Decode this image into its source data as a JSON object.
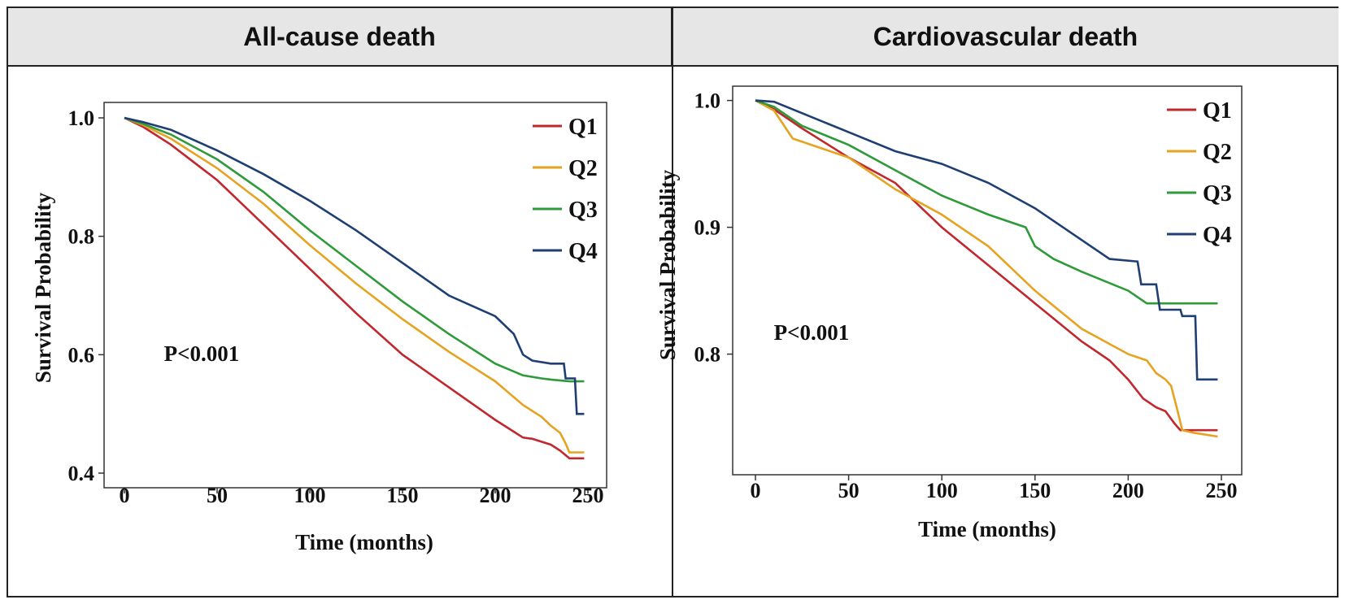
{
  "colors": {
    "Q1": "#c0282d",
    "Q2": "#e6a321",
    "Q3": "#2e9a3a",
    "Q4": "#1f3f73"
  },
  "panels": [
    {
      "title": "All-cause death",
      "pvalue": "P<0.001"
    },
    {
      "title": "Cardiovascular death",
      "pvalue": "P<0.001"
    }
  ],
  "chart_data": [
    {
      "type": "line",
      "title": "All-cause death",
      "xlabel": "Time (months)",
      "ylabel": "Survival Probability",
      "xlim": [
        0,
        250
      ],
      "ylim": [
        0.4,
        1.0
      ],
      "xticks": [
        "0",
        "50",
        "100",
        "150",
        "200",
        "250"
      ],
      "yticks": [
        "0.4",
        "0.6",
        "0.8",
        "1.0"
      ],
      "legend": "top-right",
      "annotation": "P<0.001",
      "series": [
        {
          "name": "Q1",
          "x": [
            0,
            10,
            25,
            50,
            75,
            100,
            125,
            150,
            175,
            200,
            215,
            220,
            230,
            235,
            240,
            248
          ],
          "y": [
            1.0,
            0.985,
            0.955,
            0.895,
            0.82,
            0.745,
            0.67,
            0.6,
            0.545,
            0.49,
            0.46,
            0.458,
            0.448,
            0.438,
            0.425,
            0.425
          ]
        },
        {
          "name": "Q2",
          "x": [
            0,
            10,
            25,
            50,
            75,
            100,
            125,
            150,
            175,
            200,
            215,
            225,
            230,
            235,
            238,
            240,
            248
          ],
          "y": [
            1.0,
            0.988,
            0.965,
            0.915,
            0.855,
            0.785,
            0.72,
            0.66,
            0.605,
            0.555,
            0.515,
            0.495,
            0.48,
            0.468,
            0.45,
            0.435,
            0.435
          ]
        },
        {
          "name": "Q3",
          "x": [
            0,
            10,
            25,
            50,
            75,
            100,
            125,
            150,
            175,
            200,
            215,
            225,
            230,
            240,
            248
          ],
          "y": [
            1.0,
            0.99,
            0.972,
            0.93,
            0.875,
            0.81,
            0.75,
            0.69,
            0.635,
            0.585,
            0.565,
            0.56,
            0.558,
            0.555,
            0.555
          ]
        },
        {
          "name": "Q4",
          "x": [
            0,
            10,
            25,
            50,
            75,
            100,
            125,
            150,
            175,
            200,
            210,
            215,
            220,
            230,
            237,
            238,
            243,
            244,
            248
          ],
          "y": [
            1.0,
            0.993,
            0.98,
            0.945,
            0.905,
            0.86,
            0.81,
            0.755,
            0.7,
            0.665,
            0.635,
            0.6,
            0.59,
            0.585,
            0.585,
            0.56,
            0.56,
            0.5,
            0.5
          ]
        }
      ]
    },
    {
      "type": "line",
      "title": "Cardiovascular death",
      "xlabel": "Time (months)",
      "ylabel": "Survival Probability",
      "xlim": [
        0,
        250
      ],
      "ylim": [
        0.71,
        1.01
      ],
      "xticks": [
        "0",
        "50",
        "100",
        "150",
        "200",
        "250"
      ],
      "yticks": [
        "0.8",
        "0.9",
        "1.0"
      ],
      "legend": "top-right",
      "annotation": "P<0.001",
      "series": [
        {
          "name": "Q1",
          "x": [
            0,
            10,
            25,
            50,
            75,
            100,
            125,
            150,
            175,
            190,
            200,
            208,
            215,
            220,
            225,
            228,
            248
          ],
          "y": [
            1.0,
            0.993,
            0.978,
            0.955,
            0.935,
            0.9,
            0.87,
            0.84,
            0.81,
            0.795,
            0.78,
            0.765,
            0.758,
            0.755,
            0.745,
            0.74,
            0.74
          ]
        },
        {
          "name": "Q2",
          "x": [
            0,
            10,
            20,
            50,
            75,
            100,
            125,
            150,
            175,
            200,
            210,
            215,
            220,
            223,
            226,
            229,
            235,
            248
          ],
          "y": [
            1.0,
            0.992,
            0.97,
            0.955,
            0.93,
            0.91,
            0.885,
            0.85,
            0.82,
            0.8,
            0.795,
            0.785,
            0.78,
            0.775,
            0.758,
            0.74,
            0.738,
            0.735
          ]
        },
        {
          "name": "Q3",
          "x": [
            0,
            10,
            25,
            50,
            75,
            100,
            125,
            145,
            150,
            160,
            175,
            200,
            210,
            220,
            248
          ],
          "y": [
            1.0,
            0.995,
            0.98,
            0.965,
            0.945,
            0.925,
            0.91,
            0.9,
            0.885,
            0.875,
            0.865,
            0.85,
            0.84,
            0.84,
            0.84
          ]
        },
        {
          "name": "Q4",
          "x": [
            0,
            10,
            25,
            50,
            75,
            100,
            125,
            150,
            175,
            190,
            205,
            207,
            215,
            217,
            228,
            229,
            236,
            237,
            248
          ],
          "y": [
            1.0,
            0.999,
            0.99,
            0.975,
            0.96,
            0.95,
            0.935,
            0.915,
            0.89,
            0.875,
            0.873,
            0.855,
            0.855,
            0.835,
            0.835,
            0.83,
            0.83,
            0.78,
            0.78
          ]
        }
      ]
    }
  ]
}
